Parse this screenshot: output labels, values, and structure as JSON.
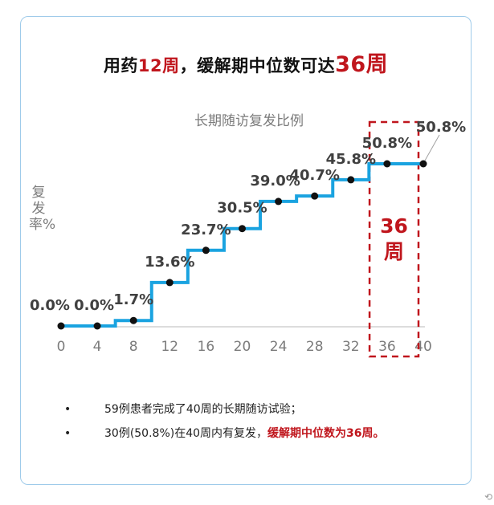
{
  "headline": {
    "part1": "用药",
    "part2": "12周",
    "part3": "，缓解期中位数可达",
    "part4": "36周"
  },
  "chart_data": {
    "type": "line",
    "title": "长期随访复发比例",
    "ylabel": "复发率%",
    "xlabel": "",
    "x_ticks": [
      0,
      4,
      8,
      12,
      16,
      20,
      24,
      28,
      32,
      36,
      40
    ],
    "xlim": [
      0,
      40
    ],
    "ylim": [
      0,
      50.8
    ],
    "step": true,
    "color": "#1aa3e0",
    "points": [
      {
        "x": 0,
        "y": 0.0,
        "label": "0.0%"
      },
      {
        "x": 4,
        "y": 0.0,
        "label": "0.0%"
      },
      {
        "x": 8,
        "y": 1.7,
        "label": "1.7%"
      },
      {
        "x": 12,
        "y": 13.6,
        "label": "13.6%"
      },
      {
        "x": 16,
        "y": 23.7,
        "label": "23.7%"
      },
      {
        "x": 20,
        "y": 30.5,
        "label": "30.5%"
      },
      {
        "x": 24,
        "y": 39.0,
        "label": "39.0%"
      },
      {
        "x": 28,
        "y": 40.7,
        "label": "40.7%"
      },
      {
        "x": 32,
        "y": 45.8,
        "label": "45.8%"
      },
      {
        "x": 36,
        "y": 50.8,
        "label": "50.8%"
      },
      {
        "x": 40,
        "y": 50.8,
        "label": "50.8%"
      }
    ],
    "annotation": {
      "text_number": "36",
      "text_unit": "周",
      "x_from": 33,
      "x_to": 40,
      "color": "#c0161d"
    }
  },
  "bullets": [
    {
      "text": "59例患者完成了40周的长期随访试验；",
      "emphasis": ""
    },
    {
      "text": "30例(50.8%)在40周内有复发，",
      "emphasis": "缓解期中位数为36周。"
    }
  ],
  "bullet_mark": "•",
  "corner_mark": "⟲"
}
